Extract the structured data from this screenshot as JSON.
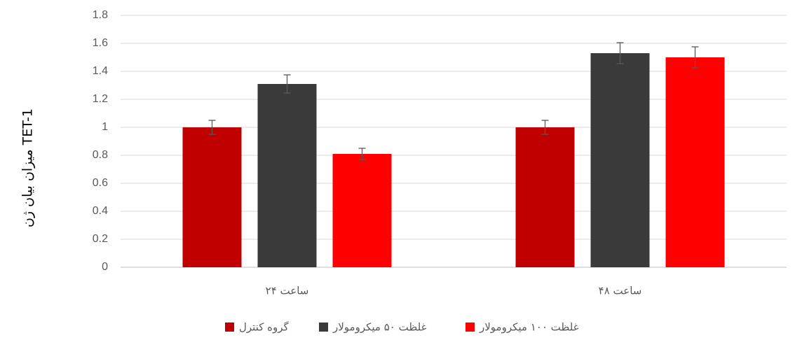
{
  "chart_data": {
    "type": "bar",
    "title": "",
    "xlabel": "",
    "ylabel": "میزان بیان ژن TET-1",
    "ylim": [
      0,
      1.8
    ],
    "yticks": [
      "0",
      "0.2",
      "0.4",
      "0.6",
      "0.8",
      "1",
      "1.2",
      "1.4",
      "1.6",
      "1.8"
    ],
    "grid": true,
    "legend_position": "bottom",
    "categories": [
      "۲۴ ساعت",
      "۴۸ ساعت"
    ],
    "series": [
      {
        "name": "گروه کنترل",
        "color": "#c00000",
        "values": [
          1.0,
          1.0
        ],
        "errors": [
          0.05,
          0.05
        ]
      },
      {
        "name": "غلظت ۵۰ میکرومولار",
        "color": "#3a3a3a",
        "values": [
          1.31,
          1.53
        ],
        "errors": [
          0.065,
          0.075
        ]
      },
      {
        "name": "غلظت ۱۰۰ میکرومولار",
        "color": "#ff0000",
        "values": [
          0.81,
          1.5
        ],
        "errors": [
          0.04,
          0.075
        ]
      }
    ]
  }
}
